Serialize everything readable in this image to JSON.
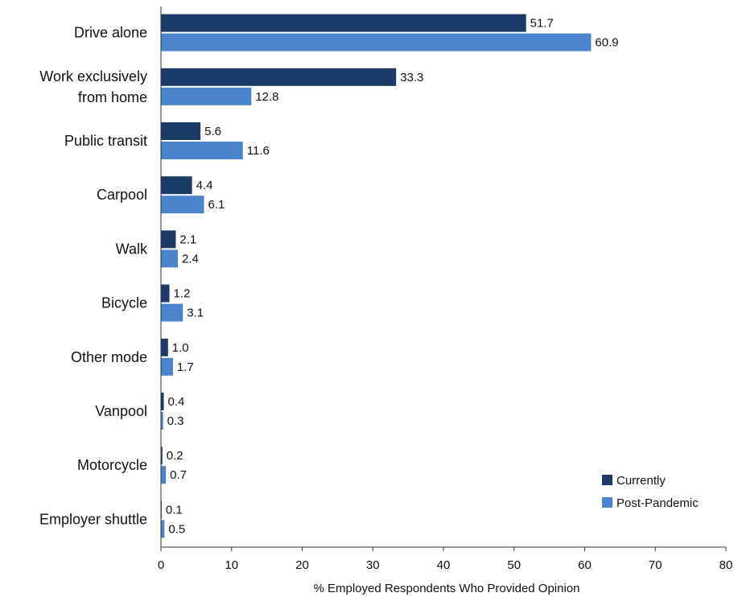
{
  "chart_data": {
    "type": "bar",
    "orientation": "horizontal",
    "categories": [
      "Drive alone",
      "Work exclusively from home",
      "Public transit",
      "Carpool",
      "Walk",
      "Bicycle",
      "Other mode",
      "Vanpool",
      "Motorcycle",
      "Employer shuttle"
    ],
    "category_lines": [
      [
        "Drive alone"
      ],
      [
        "Work exclusively",
        "from home"
      ],
      [
        "Public transit"
      ],
      [
        "Carpool"
      ],
      [
        "Walk"
      ],
      [
        "Bicycle"
      ],
      [
        "Other mode"
      ],
      [
        "Vanpool"
      ],
      [
        "Motorcycle"
      ],
      [
        "Employer shuttle"
      ]
    ],
    "series": [
      {
        "name": "Currently",
        "color": "#1b3a67",
        "values": [
          51.7,
          33.3,
          5.6,
          4.4,
          2.1,
          1.2,
          1.0,
          0.4,
          0.2,
          0.1
        ],
        "labels": [
          "51.7",
          "33.3",
          "5.6",
          "4.4",
          "2.1",
          "1.2",
          "1.0",
          "0.4",
          "0.2",
          "0.1"
        ]
      },
      {
        "name": "Post-Pandemic",
        "color": "#4a84cc",
        "values": [
          60.9,
          12.8,
          11.6,
          6.1,
          2.4,
          3.1,
          1.7,
          0.3,
          0.7,
          0.5
        ],
        "labels": [
          "60.9",
          "12.8",
          "11.6",
          "6.1",
          "2.4",
          "3.1",
          "1.7",
          "0.3",
          "0.7",
          "0.5"
        ]
      }
    ],
    "xlabel": "% Employed Respondents Who Provided Opinion",
    "xlim": [
      0,
      80
    ],
    "xticks": [
      "0",
      "10",
      "20",
      "30",
      "40",
      "50",
      "60",
      "70",
      "80"
    ],
    "grid": false,
    "legend_position": "bottom-right"
  }
}
